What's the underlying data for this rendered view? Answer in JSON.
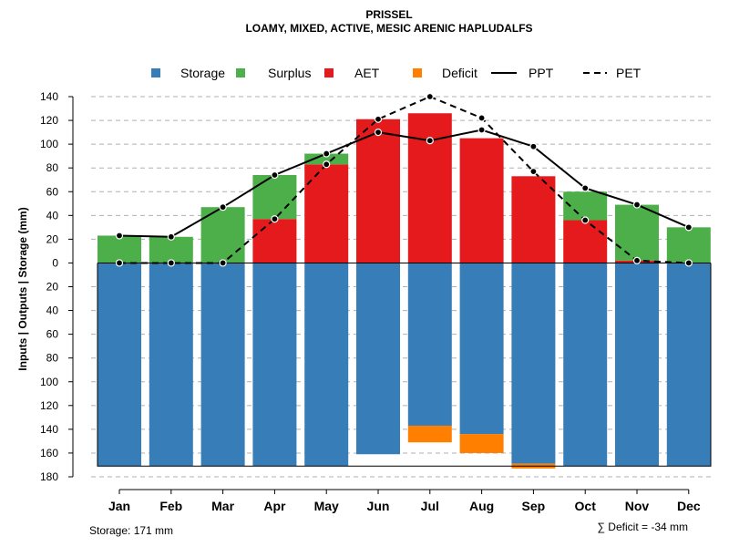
{
  "chart_data": {
    "type": "bar",
    "title": "PRISSEL",
    "subtitle": "LOAMY, MIXED, ACTIVE, MESIC ARENIC HAPLUDALFS",
    "ylabel": "Inputs | Outputs | Storage     (mm)",
    "ylim": [
      -180,
      140
    ],
    "yticks": [
      140,
      120,
      100,
      80,
      60,
      40,
      20,
      0,
      -20,
      -40,
      -60,
      -80,
      -100,
      -120,
      -140,
      -160,
      -180
    ],
    "ytick_labels": [
      "140",
      "120",
      "100",
      "80",
      "60",
      "40",
      "20",
      "0",
      "20",
      "40",
      "60",
      "80",
      "100",
      "120",
      "140",
      "160",
      "180"
    ],
    "categories": [
      "Jan",
      "Feb",
      "Mar",
      "Apr",
      "May",
      "Jun",
      "Jul",
      "Aug",
      "Sep",
      "Oct",
      "Nov",
      "Dec"
    ],
    "legend": [
      {
        "label": "Storage",
        "color": "#377eb8",
        "kind": "square"
      },
      {
        "label": "Surplus",
        "color": "#4daf4a",
        "kind": "square"
      },
      {
        "label": "AET",
        "color": "#e41a1c",
        "kind": "square"
      },
      {
        "label": "Deficit",
        "color": "#ff7f00",
        "kind": "square"
      },
      {
        "label": "PPT",
        "color": "#000000",
        "kind": "solid-line"
      },
      {
        "label": "PET",
        "color": "#000000",
        "kind": "dashed-line"
      }
    ],
    "series": [
      {
        "name": "Storage",
        "values": [
          -171,
          -171,
          -171,
          -171,
          -171,
          -161,
          -137,
          -144,
          -169,
          -171,
          -171,
          -171
        ]
      },
      {
        "name": "Surplus",
        "values": [
          23,
          22,
          47,
          37,
          9,
          0,
          0,
          0,
          0,
          24,
          47,
          30
        ]
      },
      {
        "name": "AET",
        "values": [
          0,
          0,
          0,
          37,
          83,
          121,
          126,
          105,
          73,
          36,
          2,
          0
        ]
      },
      {
        "name": "Deficit",
        "values": [
          0,
          0,
          0,
          0,
          0,
          0,
          -14,
          -16,
          -4,
          0,
          0,
          0
        ]
      },
      {
        "name": "PPT",
        "values": [
          23,
          22,
          47,
          74,
          92,
          110,
          103,
          112,
          98,
          63,
          49,
          30
        ]
      },
      {
        "name": "PET",
        "values": [
          0,
          0,
          0,
          37,
          83,
          121,
          140,
          122,
          77,
          36,
          2,
          0
        ]
      }
    ],
    "footer_left": "Storage: 171 mm",
    "footer_right": "∑ Deficit = -34 mm",
    "colors": {
      "grid": "#b0b0b0",
      "storage_outline": "#000000"
    }
  }
}
